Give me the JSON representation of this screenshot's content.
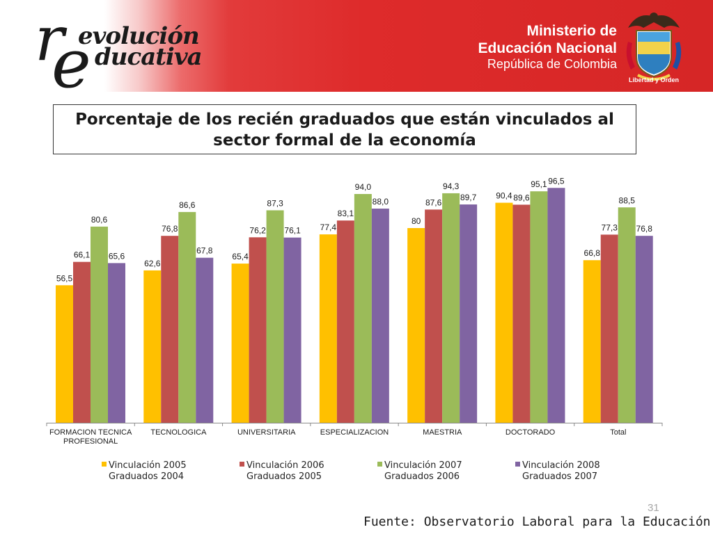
{
  "header": {
    "logo_r": "r",
    "logo_e": "e",
    "logo_line1": "evolución",
    "logo_line2": "ducativa",
    "ministry_line1": "Ministerio de",
    "ministry_line2": "Educación Nacional",
    "ministry_line3": "República de Colombia",
    "motto": "Libertad y Orden"
  },
  "colors": {
    "s2005": "#FFC000",
    "s2006": "#C0504D",
    "s2007": "#9BBB59",
    "s2008": "#8064A2",
    "header_red": "#D62626"
  },
  "chart_data": {
    "type": "bar",
    "title": "Porcentaje de los recién graduados que están vinculados al sector formal de la economía",
    "categories": [
      [
        "FORMACION TECNICA",
        "PROFESIONAL"
      ],
      [
        "TECNOLOGICA"
      ],
      [
        "UNIVERSITARIA"
      ],
      [
        "ESPECIALIZACION"
      ],
      [
        "MAESTRIA"
      ],
      [
        "DOCTORADO"
      ],
      [
        "Total"
      ]
    ],
    "series": [
      {
        "name": "Vinculación 2005",
        "sub": "Graduados 2004",
        "color": "#FFC000",
        "values": [
          56.5,
          62.6,
          65.4,
          77.4,
          80,
          90.4,
          66.8
        ],
        "labels": [
          "56,5",
          "62,6",
          "65,4",
          "77,4",
          "80",
          "90,4",
          "66,8"
        ]
      },
      {
        "name": "Vinculación 2006",
        "sub": "Graduados 2005",
        "color": "#C0504D",
        "values": [
          66.1,
          76.8,
          76.2,
          83.1,
          87.6,
          89.6,
          77.3
        ],
        "labels": [
          "66,1",
          "76,8",
          "76,2",
          "83,1",
          "87,6",
          "89,6",
          "77,3"
        ]
      },
      {
        "name": "Vinculación 2007",
        "sub": "Graduados 2006",
        "color": "#9BBB59",
        "values": [
          80.6,
          86.6,
          87.3,
          94.0,
          94.3,
          95.1,
          88.5
        ],
        "labels": [
          "80,6",
          "86,6",
          "87,3",
          "94,0",
          "94,3",
          "95,1",
          "88,5"
        ]
      },
      {
        "name": "Vinculación 2008",
        "sub": "Graduados 2007",
        "color": "#8064A2",
        "values": [
          65.6,
          67.8,
          76.1,
          88.0,
          89.7,
          96.5,
          76.8
        ],
        "labels": [
          "65,6",
          "67,8",
          "76,1",
          "88,0",
          "89,7",
          "96,5",
          "76,8"
        ]
      }
    ],
    "ylim": [
      0,
      100
    ],
    "grid": false,
    "legend": "bottom"
  },
  "footer": {
    "page_number": "31",
    "source": "Fuente: Observatorio Laboral para la Educación"
  }
}
